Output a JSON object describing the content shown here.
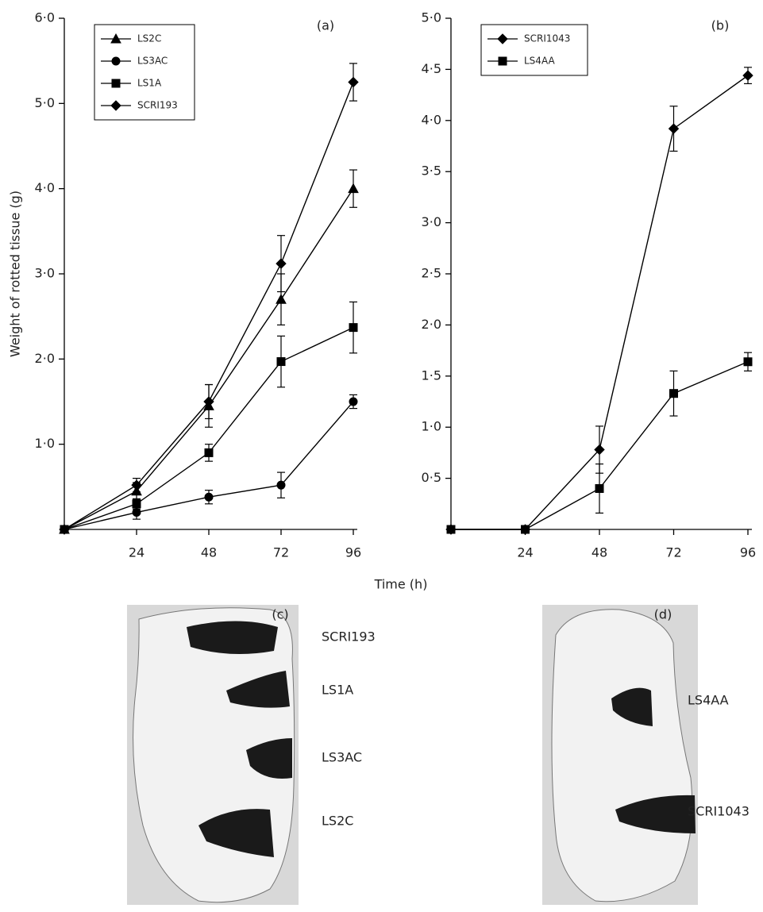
{
  "chart_data": [
    {
      "type": "line",
      "panel": "(a)",
      "ylabel": "Weight of rotted tissue (g)",
      "xlabel": "Time (h)",
      "x": [
        0,
        24,
        48,
        72,
        96
      ],
      "xlim": [
        0,
        96
      ],
      "xticks": [
        24,
        48,
        72,
        96
      ],
      "ylim": [
        0,
        6
      ],
      "yticks": [
        {
          "value": 1,
          "label": "1·0"
        },
        {
          "value": 2,
          "label": "2·0"
        },
        {
          "value": 3,
          "label": "3·0"
        },
        {
          "value": 4,
          "label": "4·0"
        },
        {
          "value": 5,
          "label": "5·0"
        },
        {
          "value": 6,
          "label": "6·0"
        }
      ],
      "legend": "upper left",
      "series": [
        {
          "name": "LS2C",
          "color": "#000000",
          "marker": "triangle",
          "values": [
            0,
            0.45,
            1.45,
            2.7,
            4.0
          ],
          "errors": [
            0,
            0.1,
            0.25,
            0.3,
            0.22
          ]
        },
        {
          "name": "LS3AC",
          "color": "#000000",
          "marker": "circle",
          "values": [
            0,
            0.2,
            0.38,
            0.52,
            1.5
          ],
          "errors": [
            0,
            0.08,
            0.08,
            0.15,
            0.08
          ]
        },
        {
          "name": "LS1A",
          "color": "#000000",
          "marker": "square",
          "values": [
            0,
            0.3,
            0.9,
            1.97,
            2.37
          ],
          "errors": [
            0,
            0.06,
            0.1,
            0.3,
            0.3
          ]
        },
        {
          "name": "SCRI193",
          "color": "#000000",
          "marker": "diamond",
          "values": [
            0,
            0.52,
            1.5,
            3.12,
            5.25
          ],
          "errors": [
            0,
            0.08,
            0.2,
            0.33,
            0.22
          ]
        }
      ]
    },
    {
      "type": "line",
      "panel": "(b)",
      "x": [
        0,
        24,
        48,
        72,
        96
      ],
      "xlim": [
        0,
        96
      ],
      "xticks": [
        24,
        48,
        72,
        96
      ],
      "ylim": [
        0,
        5
      ],
      "yticks": [
        {
          "value": 0.5,
          "label": "0·5"
        },
        {
          "value": 1,
          "label": "1·0"
        },
        {
          "value": 1.5,
          "label": "1·5"
        },
        {
          "value": 2,
          "label": "2·0"
        },
        {
          "value": 2.5,
          "label": "2·5"
        },
        {
          "value": 3,
          "label": "3·0"
        },
        {
          "value": 3.5,
          "label": "3·5"
        },
        {
          "value": 4,
          "label": "4·0"
        },
        {
          "value": 4.5,
          "label": "4·5"
        },
        {
          "value": 5,
          "label": "5·0"
        }
      ],
      "legend": "upper left",
      "series": [
        {
          "name": "SCRI1043",
          "color": "#000000",
          "marker": "diamond",
          "values": [
            0,
            0,
            0.78,
            3.92,
            4.44
          ],
          "errors": [
            0,
            0,
            0.23,
            0.22,
            0.08
          ]
        },
        {
          "name": "LS4AA",
          "color": "#000000",
          "marker": "square",
          "values": [
            0,
            0,
            0.4,
            1.33,
            1.64
          ],
          "errors": [
            0,
            0,
            0.24,
            0.22,
            0.09
          ]
        }
      ]
    }
  ],
  "photos": [
    {
      "panel": "(c)",
      "labels": [
        "SCRI193",
        "LS1A",
        "LS3AC",
        "LS2C"
      ]
    },
    {
      "panel": "(d)",
      "labels": [
        "LS4AA",
        "SCRI1043"
      ]
    }
  ]
}
